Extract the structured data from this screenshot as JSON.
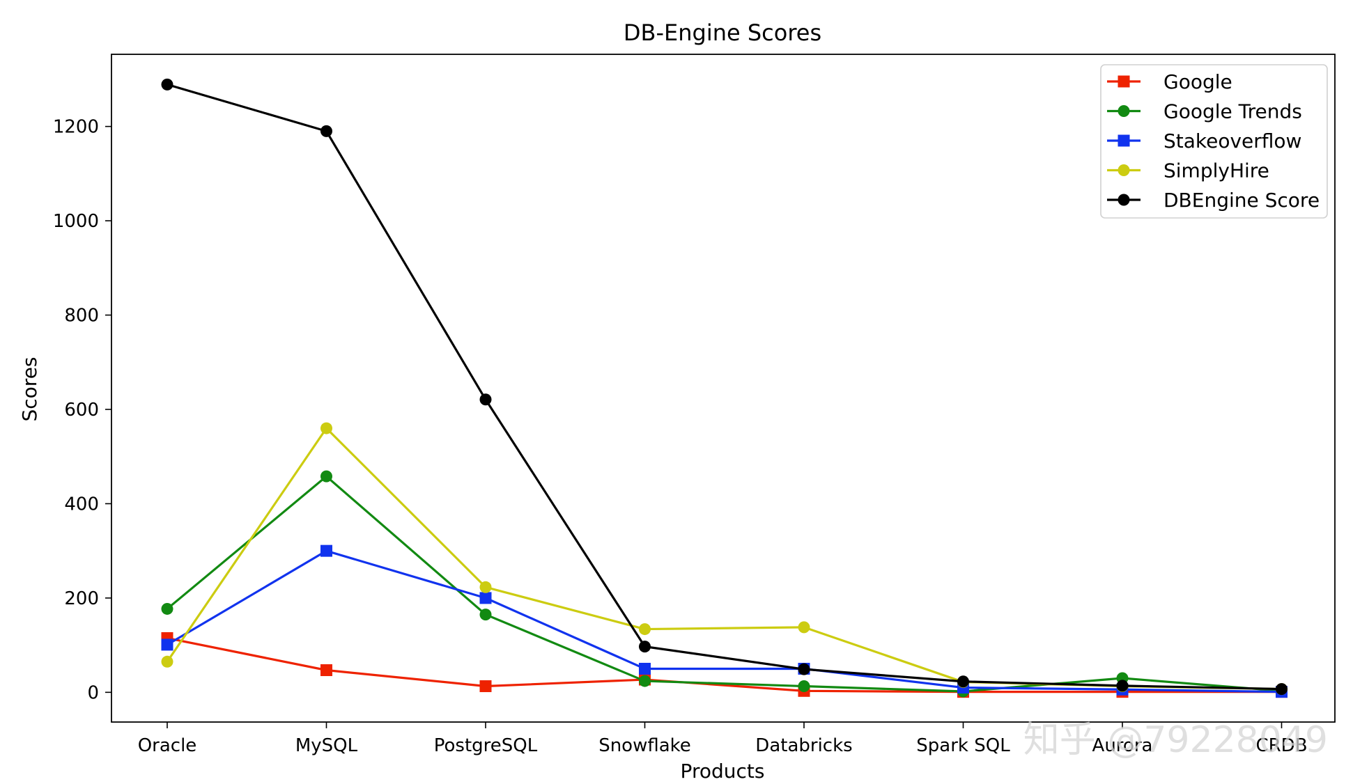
{
  "chart_data": {
    "type": "line",
    "title": "DB-Engine Scores",
    "xlabel": "Products",
    "ylabel": "Scores",
    "categories": [
      "Oracle",
      "MySQL",
      "PostgreSQL",
      "Snowflake",
      "Databricks",
      "Spark SQL",
      "Aurora",
      "CRDB"
    ],
    "ylim": [
      -63,
      1353
    ],
    "yticks": [
      0,
      200,
      400,
      600,
      800,
      1000,
      1200
    ],
    "grid": false,
    "legend_position": "top-right",
    "series": [
      {
        "name": "Google",
        "color": "#ee2200",
        "marker": "square",
        "values": [
          115,
          47,
          13,
          27,
          3,
          1,
          1,
          1
        ]
      },
      {
        "name": "Google Trends",
        "color": "#128a12",
        "marker": "circle",
        "values": [
          177,
          458,
          165,
          24,
          13,
          2,
          30,
          3
        ]
      },
      {
        "name": "Stakeoverflow",
        "color": "#1133ee",
        "marker": "square",
        "values": [
          101,
          300,
          200,
          50,
          50,
          10,
          6,
          1
        ]
      },
      {
        "name": "SimplyHire",
        "color": "#cccc11",
        "marker": "circle",
        "values": [
          65,
          560,
          223,
          134,
          138,
          22,
          13,
          7
        ]
      },
      {
        "name": "DBEngine Score",
        "color": "#000000",
        "marker": "circle",
        "values": [
          1289,
          1190,
          621,
          97,
          49,
          23,
          14,
          7
        ]
      }
    ]
  },
  "watermark": "知乎 @79228049"
}
